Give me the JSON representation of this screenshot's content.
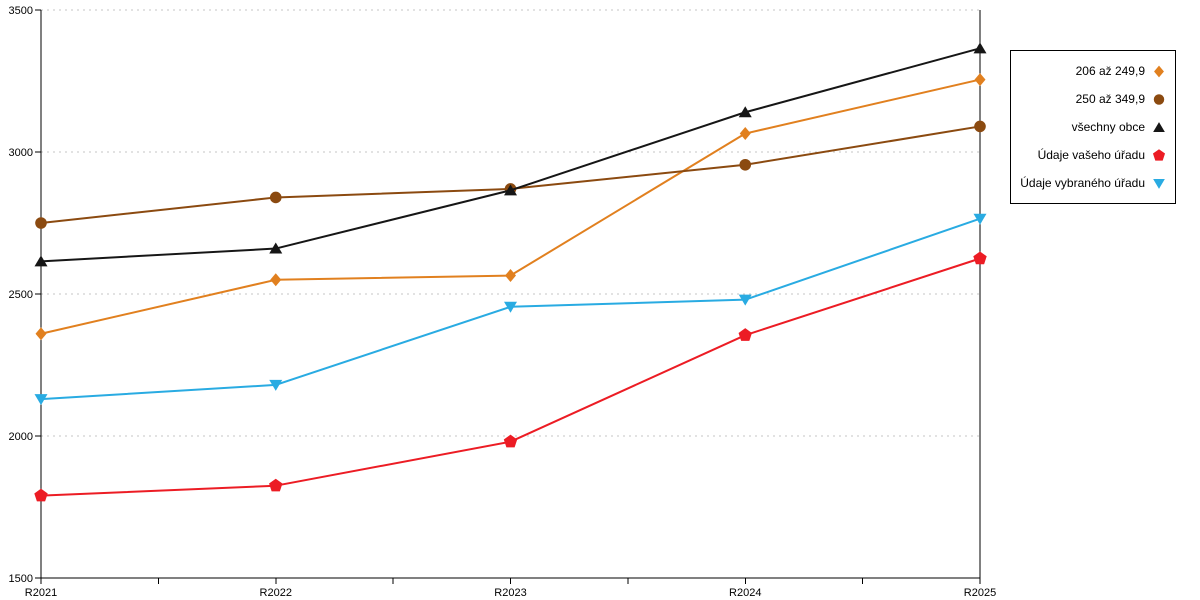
{
  "chart_data": {
    "type": "line",
    "title": "",
    "xlabel": "",
    "ylabel": "",
    "categories": [
      "R2021",
      "R2022",
      "R2023",
      "R2024",
      "R2025"
    ],
    "series": [
      {
        "name": "206 až 249,9",
        "marker": "diamond",
        "color": "#e1801f",
        "values": [
          2360,
          2550,
          2565,
          3065,
          3255
        ]
      },
      {
        "name": "250 až 349,9",
        "marker": "circle",
        "color": "#8b4a10",
        "values": [
          2750,
          2840,
          2870,
          2955,
          3090
        ]
      },
      {
        "name": "všechny obce",
        "marker": "triangle-up",
        "color": "#161616",
        "values": [
          2615,
          2660,
          2865,
          3140,
          3365
        ]
      },
      {
        "name": "Údaje vašeho úřadu",
        "marker": "pentagon",
        "color": "#ec1c24",
        "values": [
          1790,
          1825,
          1980,
          2355,
          2625
        ]
      },
      {
        "name": "Údaje vybraného úřadu",
        "marker": "triangle-down",
        "color": "#29abe2",
        "values": [
          2130,
          2180,
          2455,
          2480,
          2765
        ]
      }
    ],
    "ylim": [
      1500,
      3500
    ],
    "y_ticks": [
      1500,
      2000,
      2500,
      3000,
      3500
    ],
    "grid": "horizontal dotted gridlines at 2000, 2500, 3000, 3500",
    "legend_position": "right"
  },
  "colors": {
    "background": "#ffffff",
    "axis": "#000000",
    "gridline": "#c4c4c4",
    "legend_border": "#000000",
    "legend_background": "#ffffff"
  }
}
